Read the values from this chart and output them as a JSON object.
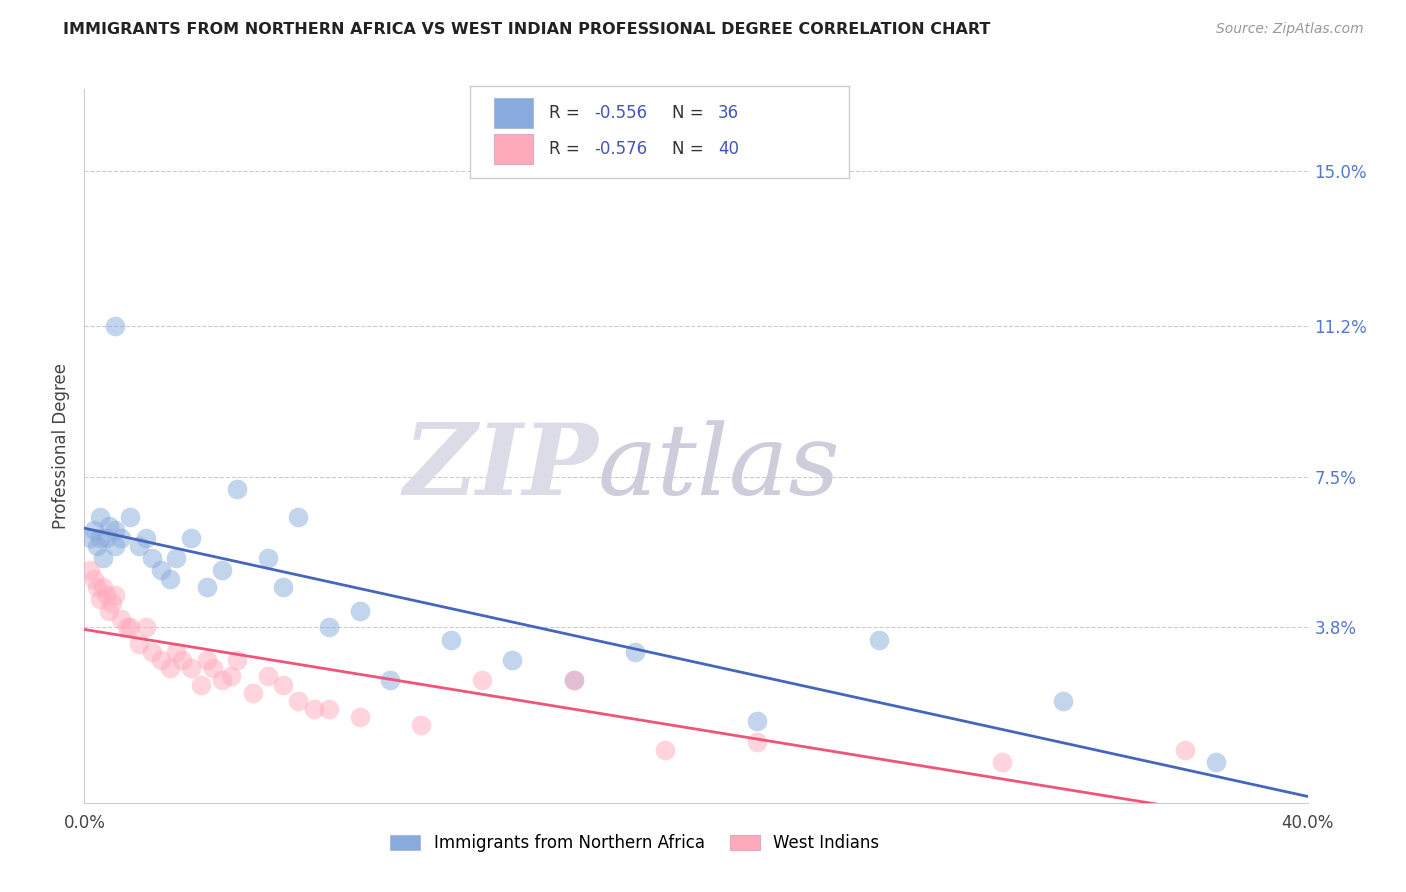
{
  "title": "IMMIGRANTS FROM NORTHERN AFRICA VS WEST INDIAN PROFESSIONAL DEGREE CORRELATION CHART",
  "source": "Source: ZipAtlas.com",
  "ylabel": "Professional Degree",
  "ytick_labels": [
    "15.0%",
    "11.2%",
    "7.5%",
    "3.8%"
  ],
  "ytick_values": [
    0.15,
    0.112,
    0.075,
    0.038
  ],
  "xlim": [
    0.0,
    0.4
  ],
  "ylim": [
    -0.005,
    0.17
  ],
  "blue_R": "-0.556",
  "blue_N": "36",
  "pink_R": "-0.576",
  "pink_N": "40",
  "blue_color": "#88AADD",
  "pink_color": "#FFAABB",
  "blue_line_color": "#4466BB",
  "pink_line_color": "#EE5577",
  "legend_label_blue": "Immigrants from Northern Africa",
  "legend_label_pink": "West Indians",
  "blue_x": [
    0.002,
    0.003,
    0.004,
    0.005,
    0.005,
    0.006,
    0.007,
    0.008,
    0.01,
    0.01,
    0.012,
    0.015,
    0.018,
    0.02,
    0.022,
    0.025,
    0.028,
    0.03,
    0.035,
    0.04,
    0.045,
    0.05,
    0.06,
    0.065,
    0.07,
    0.08,
    0.09,
    0.1,
    0.12,
    0.14,
    0.16,
    0.18,
    0.22,
    0.26,
    0.32,
    0.37
  ],
  "blue_y": [
    0.06,
    0.062,
    0.058,
    0.06,
    0.065,
    0.055,
    0.06,
    0.063,
    0.062,
    0.058,
    0.06,
    0.065,
    0.058,
    0.06,
    0.055,
    0.052,
    0.05,
    0.055,
    0.06,
    0.048,
    0.052,
    0.072,
    0.055,
    0.048,
    0.065,
    0.038,
    0.042,
    0.025,
    0.035,
    0.03,
    0.025,
    0.032,
    0.015,
    0.035,
    0.02,
    0.005
  ],
  "blue_outlier_x": [
    0.01
  ],
  "blue_outlier_y": [
    0.112
  ],
  "pink_x": [
    0.002,
    0.003,
    0.004,
    0.005,
    0.006,
    0.007,
    0.008,
    0.009,
    0.01,
    0.012,
    0.014,
    0.015,
    0.018,
    0.02,
    0.022,
    0.025,
    0.028,
    0.03,
    0.032,
    0.035,
    0.038,
    0.04,
    0.042,
    0.045,
    0.048,
    0.05,
    0.055,
    0.06,
    0.065,
    0.07,
    0.075,
    0.08,
    0.09,
    0.11,
    0.13,
    0.16,
    0.19,
    0.22,
    0.3,
    0.36
  ],
  "pink_y": [
    0.052,
    0.05,
    0.048,
    0.045,
    0.048,
    0.046,
    0.042,
    0.044,
    0.046,
    0.04,
    0.038,
    0.038,
    0.034,
    0.038,
    0.032,
    0.03,
    0.028,
    0.032,
    0.03,
    0.028,
    0.024,
    0.03,
    0.028,
    0.025,
    0.026,
    0.03,
    0.022,
    0.026,
    0.024,
    0.02,
    0.018,
    0.018,
    0.016,
    0.014,
    0.025,
    0.025,
    0.008,
    0.01,
    0.005,
    0.008
  ]
}
